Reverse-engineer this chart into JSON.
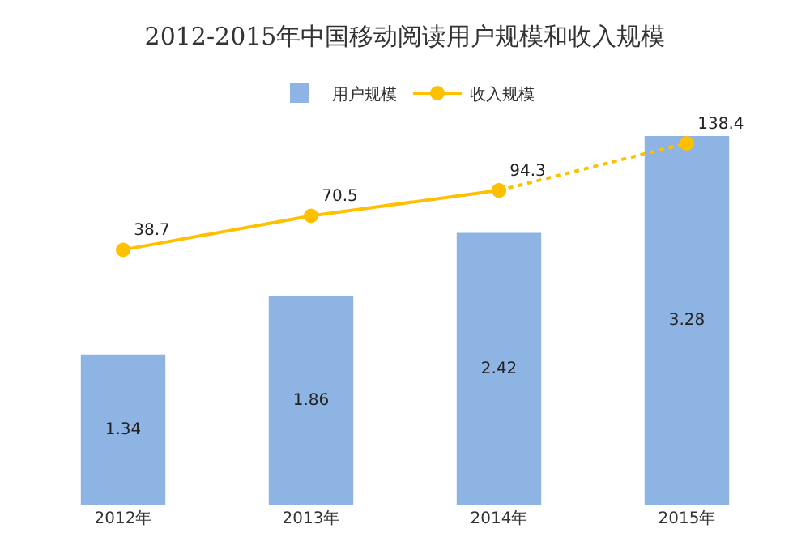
{
  "chart_data": {
    "type": "bar",
    "title": "2012-2015年中国移动阅读用户规模和收入规模",
    "categories": [
      "2012年",
      "2013年",
      "2014年",
      "2015年"
    ],
    "series": [
      {
        "name": "用户规模",
        "color": "#8eb4e3",
        "values": [
          1.34,
          1.86,
          2.42,
          3.28
        ],
        "value_labels": [
          "1.34",
          "1.86",
          "2.42",
          "3.28"
        ]
      },
      {
        "name": "收入规模",
        "type": "line",
        "axis": "y2",
        "color": "#ffc000",
        "line_style": "solid",
        "marker": "circle",
        "values": [
          38.7,
          70.5,
          94.3,
          null
        ],
        "value_labels": [
          "38.7",
          "70.5",
          "94.3",
          null
        ]
      },
      {
        "type": "line",
        "axis": "y2",
        "color": "#ffc000",
        "line_style": "dotted",
        "marker": "circle",
        "values": [
          null,
          null,
          94.3,
          138.4
        ],
        "value_labels": [
          null,
          null,
          null,
          "138.4"
        ]
      }
    ],
    "tick_labels": "x",
    "grid": false,
    "legend": "top"
  }
}
